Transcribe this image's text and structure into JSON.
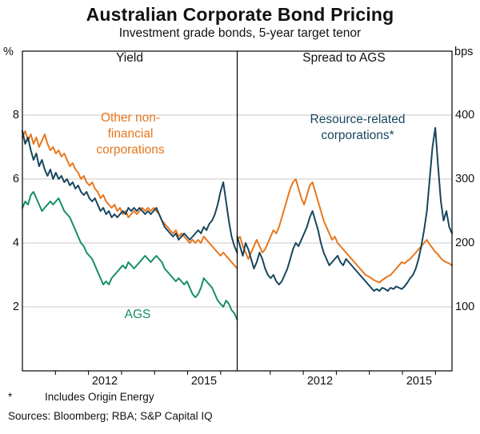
{
  "header": {
    "title": "Australian Corporate Bond Pricing",
    "subtitle": "Investment grade bonds, 5-year target tenor"
  },
  "footnotes": {
    "asterisk": "*",
    "note": "Includes Origin Energy",
    "sources": "Sources:  Bloomberg; RBA; S&P Capital IQ"
  },
  "chart_data": {
    "type": "line",
    "title": "Australian Corporate Bond Pricing",
    "subtitle": "Investment grade bonds, 5-year target tenor",
    "x_range": [
      2010,
      2016.5
    ],
    "x_ticks_years": [
      2011,
      2012,
      2013,
      2014,
      2015,
      2016
    ],
    "x_tick_labels": [
      "2012",
      "2015"
    ],
    "grid": true,
    "panels": [
      {
        "title": "Yield",
        "unit": "%",
        "axis_side": "left",
        "ylim": [
          0,
          10
        ],
        "yticks": [
          2,
          4,
          6,
          8
        ],
        "series": [
          {
            "id": "other-nonfinancial-yield",
            "name": "Other non-financial corporations",
            "color": "#E8761B",
            "values": [
              7.3,
              7.5,
              7.2,
              7.4,
              7.1,
              7.3,
              7.0,
              7.2,
              7.4,
              7.1,
              6.9,
              7.0,
              6.8,
              6.9,
              6.7,
              6.8,
              6.6,
              6.4,
              6.5,
              6.3,
              6.2,
              6.0,
              6.1,
              5.9,
              5.8,
              5.9,
              5.7,
              5.6,
              5.4,
              5.5,
              5.3,
              5.2,
              5.1,
              5.2,
              5.0,
              5.1,
              4.9,
              5.0,
              4.8,
              4.9,
              5.0,
              4.9,
              5.0,
              5.1,
              5.0,
              5.1,
              5.0,
              5.1,
              5.0,
              4.9,
              4.7,
              4.6,
              4.5,
              4.4,
              4.3,
              4.4,
              4.2,
              4.3,
              4.2,
              4.1,
              4.0,
              4.1,
              4.0,
              4.1,
              4.0,
              4.2,
              4.1,
              4.0,
              3.9,
              3.8,
              3.7,
              3.6,
              3.7,
              3.6,
              3.5,
              3.4,
              3.3,
              3.2
            ]
          },
          {
            "id": "ags-yield",
            "name": "AGS",
            "color": "#168F60",
            "values": [
              5.1,
              5.3,
              5.2,
              5.5,
              5.6,
              5.4,
              5.2,
              5.0,
              5.1,
              5.2,
              5.3,
              5.2,
              5.3,
              5.4,
              5.2,
              5.0,
              4.9,
              4.8,
              4.6,
              4.4,
              4.2,
              4.0,
              3.9,
              3.7,
              3.6,
              3.5,
              3.3,
              3.1,
              2.9,
              2.7,
              2.8,
              2.7,
              2.9,
              3.0,
              3.1,
              3.2,
              3.3,
              3.2,
              3.4,
              3.3,
              3.2,
              3.3,
              3.4,
              3.5,
              3.6,
              3.5,
              3.4,
              3.5,
              3.6,
              3.5,
              3.4,
              3.2,
              3.1,
              3.0,
              2.9,
              2.8,
              2.9,
              2.8,
              2.7,
              2.8,
              2.6,
              2.4,
              2.3,
              2.4,
              2.6,
              2.9,
              2.8,
              2.7,
              2.6,
              2.4,
              2.2,
              2.1,
              2.0,
              2.2,
              2.1,
              1.9,
              1.8,
              1.6
            ]
          },
          {
            "id": "resource-related-yield",
            "name": "Resource-related corporations*",
            "color": "#17465E",
            "values": [
              7.5,
              7.1,
              7.3,
              6.9,
              6.6,
              6.8,
              6.4,
              6.6,
              6.3,
              6.1,
              6.3,
              6.0,
              6.2,
              6.0,
              6.1,
              5.9,
              6.0,
              5.8,
              5.9,
              5.7,
              5.8,
              5.6,
              5.5,
              5.6,
              5.4,
              5.3,
              5.4,
              5.2,
              5.0,
              5.1,
              4.9,
              5.0,
              4.8,
              4.9,
              4.8,
              4.9,
              5.0,
              4.9,
              5.1,
              5.0,
              5.1,
              5.0,
              5.1,
              5.0,
              4.9,
              5.0,
              4.9,
              5.0,
              5.1,
              4.9,
              4.7,
              4.5,
              4.4,
              4.3,
              4.2,
              4.3,
              4.1,
              4.2,
              4.3,
              4.2,
              4.1,
              4.2,
              4.3,
              4.4,
              4.3,
              4.5,
              4.4,
              4.6,
              4.7,
              4.9,
              5.2,
              5.6,
              5.9,
              5.3,
              4.7,
              4.2,
              3.9,
              3.7
            ]
          }
        ]
      },
      {
        "title": "Spread to AGS",
        "unit": "bps",
        "axis_side": "right",
        "ylim": [
          0,
          500
        ],
        "yticks": [
          100,
          200,
          300,
          400
        ],
        "series": [
          {
            "id": "other-nonfinancial-spread",
            "name": "Other non-financial corporations",
            "color": "#E8761B",
            "values": [
              205,
              210,
              195,
              185,
              175,
              185,
              195,
              205,
              195,
              185,
              190,
              200,
              210,
              220,
              215,
              225,
              240,
              255,
              270,
              285,
              295,
              300,
              285,
              270,
              260,
              275,
              290,
              295,
              280,
              265,
              250,
              235,
              225,
              215,
              205,
              210,
              200,
              195,
              190,
              185,
              180,
              175,
              170,
              165,
              160,
              155,
              150,
              148,
              145,
              142,
              140,
              138,
              142,
              145,
              148,
              150,
              155,
              160,
              165,
              170,
              168,
              172,
              175,
              180,
              185,
              190,
              195,
              200,
              205,
              198,
              192,
              186,
              182,
              176,
              172,
              170,
              168,
              165
            ]
          },
          {
            "id": "resource-related-spread",
            "name": "Resource-related corporations*",
            "color": "#17465E",
            "values": [
              210,
              195,
              180,
              200,
              190,
              175,
              160,
              170,
              185,
              175,
              160,
              150,
              145,
              150,
              140,
              135,
              140,
              150,
              160,
              175,
              190,
              200,
              195,
              205,
              215,
              225,
              240,
              250,
              235,
              220,
              200,
              185,
              175,
              165,
              170,
              175,
              180,
              170,
              165,
              175,
              170,
              165,
              160,
              155,
              150,
              145,
              140,
              135,
              130,
              125,
              128,
              125,
              130,
              128,
              125,
              130,
              128,
              132,
              130,
              128,
              132,
              138,
              145,
              150,
              160,
              175,
              195,
              220,
              250,
              300,
              350,
              380,
              320,
              265,
              235,
              250,
              225,
              215
            ]
          }
        ]
      }
    ]
  }
}
